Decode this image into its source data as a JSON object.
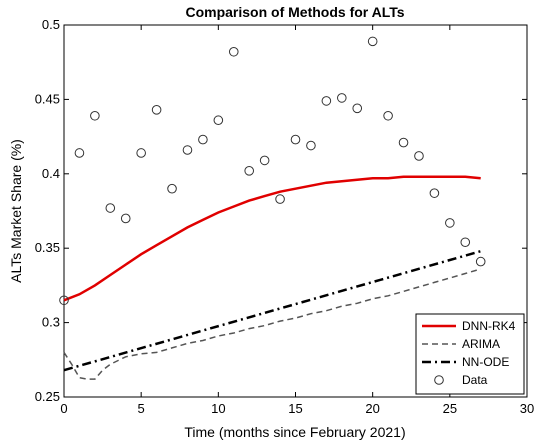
{
  "chart_data": {
    "type": "line",
    "title": "Comparison of Methods for ALTs",
    "xlabel": "Time (months since February 2021)",
    "ylabel": "ALTs Market Share (%)",
    "xlim": [
      0,
      30
    ],
    "ylim": [
      0.25,
      0.5
    ],
    "xticks": [
      "0",
      "5",
      "10",
      "15",
      "20",
      "25",
      "30"
    ],
    "yticks": [
      "0.25",
      "0.3",
      "0.35",
      "0.4",
      "0.45",
      "0.5"
    ],
    "grid": false,
    "legend_position": "bottom-right",
    "series": [
      {
        "name": "DNN-RK4",
        "style": "solid",
        "color": "#e00000",
        "x": [
          0,
          1,
          2,
          3,
          4,
          5,
          6,
          7,
          8,
          9,
          10,
          11,
          12,
          13,
          14,
          15,
          16,
          17,
          18,
          19,
          20,
          21,
          22,
          23,
          24,
          25,
          26,
          27
        ],
        "values": [
          0.315,
          0.319,
          0.325,
          0.332,
          0.339,
          0.346,
          0.352,
          0.358,
          0.364,
          0.369,
          0.374,
          0.378,
          0.382,
          0.385,
          0.388,
          0.39,
          0.392,
          0.394,
          0.395,
          0.396,
          0.397,
          0.397,
          0.398,
          0.398,
          0.398,
          0.398,
          0.398,
          0.397
        ]
      },
      {
        "name": "ARIMA",
        "style": "dashed",
        "color": "#555555",
        "x": [
          0,
          0.5,
          1,
          1.5,
          2,
          2.5,
          3,
          4,
          5,
          6,
          7,
          8,
          9,
          10,
          11,
          12,
          13,
          14,
          15,
          16,
          17,
          18,
          19,
          20,
          21,
          22,
          23,
          24,
          25,
          26,
          27
        ],
        "values": [
          0.28,
          0.272,
          0.263,
          0.262,
          0.262,
          0.268,
          0.272,
          0.277,
          0.279,
          0.28,
          0.283,
          0.286,
          0.288,
          0.291,
          0.293,
          0.296,
          0.298,
          0.301,
          0.303,
          0.306,
          0.308,
          0.311,
          0.313,
          0.316,
          0.318,
          0.321,
          0.324,
          0.327,
          0.33,
          0.333,
          0.336
        ]
      },
      {
        "name": "NN-ODE",
        "style": "dashdot",
        "color": "#000000",
        "x": [
          0,
          27
        ],
        "values": [
          0.268,
          0.348
        ]
      },
      {
        "name": "Data",
        "style": "markers",
        "color": "#333333",
        "x": [
          0,
          1,
          2,
          3,
          4,
          5,
          6,
          7,
          8,
          9,
          10,
          11,
          12,
          13,
          14,
          15,
          16,
          17,
          18,
          19,
          20,
          21,
          22,
          23,
          24,
          25,
          26,
          27
        ],
        "values": [
          0.315,
          0.414,
          0.439,
          0.377,
          0.37,
          0.414,
          0.443,
          0.39,
          0.416,
          0.423,
          0.436,
          0.482,
          0.402,
          0.409,
          0.383,
          0.423,
          0.419,
          0.449,
          0.451,
          0.444,
          0.489,
          0.439,
          0.421,
          0.412,
          0.387,
          0.367,
          0.354,
          0.341
        ]
      }
    ]
  }
}
